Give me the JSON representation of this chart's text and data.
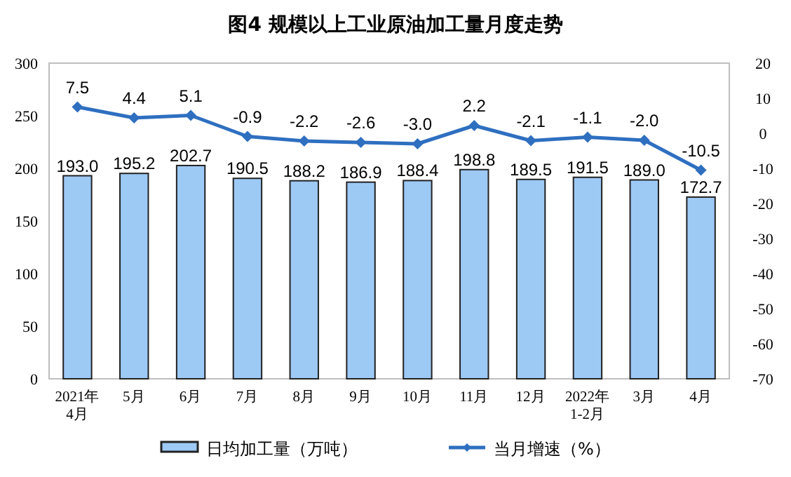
{
  "chart_data": {
    "type": "bar",
    "title": "图4  规模以上工业原油加工量月度走势",
    "categories": [
      "2021年\n4月",
      "5月",
      "6月",
      "7月",
      "8月",
      "9月",
      "10月",
      "11月",
      "12月",
      "2022年\n1-2月",
      "3月",
      "4月"
    ],
    "series": [
      {
        "name": "日均加工量（万吨）",
        "color": "#9dc9f5",
        "values": [
          193.0,
          195.2,
          202.7,
          190.5,
          188.2,
          186.9,
          188.4,
          198.8,
          189.5,
          191.5,
          189.0,
          172.7
        ],
        "value_labels": [
          "193.0",
          "195.2",
          "202.7",
          "190.5",
          "188.2",
          "186.9",
          "188.4",
          "198.8",
          "189.5",
          "191.5",
          "189.0",
          "172.7"
        ]
      },
      {
        "name": "当月增速（%）",
        "type": "line",
        "axis": "y2",
        "color": "#2e6fc0",
        "marker": "diamond",
        "values": [
          7.5,
          4.4,
          5.1,
          -0.9,
          -2.2,
          -2.6,
          -3.0,
          2.2,
          -2.1,
          -1.1,
          -2.0,
          -10.5
        ],
        "value_labels": [
          "7.5",
          "4.4",
          "5.1",
          "-0.9",
          "-2.2",
          "-2.6",
          "-3.0",
          "2.2",
          "-2.1",
          "-1.1",
          "-2.0",
          "-10.5"
        ]
      }
    ],
    "ylim": [
      0,
      300
    ],
    "yticks": [
      0,
      50,
      100,
      150,
      200,
      250,
      300
    ],
    "y2lim": [
      -70,
      20
    ],
    "y2ticks": [
      -70,
      -60,
      -50,
      -40,
      -30,
      -20,
      -10,
      0,
      10,
      20
    ],
    "legend": "bottom",
    "grid": false
  }
}
